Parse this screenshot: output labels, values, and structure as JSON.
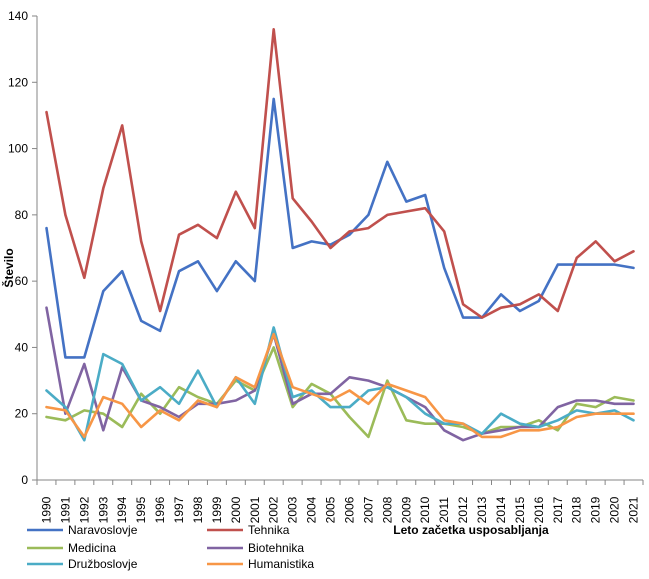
{
  "chart_data": {
    "type": "line",
    "title": "",
    "xlabel": "Leto začetka usposabljanja",
    "ylabel": "Število",
    "ylim": [
      0,
      140
    ],
    "yticks": [
      0,
      20,
      40,
      60,
      80,
      100,
      120,
      140
    ],
    "grid": false,
    "legend_position": "bottom-left",
    "categories": [
      "1990",
      "1991",
      "1992",
      "1993",
      "1994",
      "1995",
      "1996",
      "1997",
      "1998",
      "1999",
      "2000",
      "2001",
      "2002",
      "2003",
      "2004",
      "2005",
      "2006",
      "2007",
      "2008",
      "2009",
      "2010",
      "2011",
      "2012",
      "2013",
      "2014",
      "2015",
      "2016",
      "2017",
      "2018",
      "2019",
      "2020",
      "2021"
    ],
    "series": [
      {
        "name": "Naravoslovje",
        "color": "#4472C4",
        "values": [
          76,
          37,
          37,
          57,
          63,
          48,
          45,
          63,
          66,
          57,
          66,
          60,
          115,
          70,
          72,
          71,
          74,
          80,
          96,
          84,
          86,
          64,
          49,
          49,
          56,
          51,
          54,
          65,
          65,
          65,
          65,
          64
        ]
      },
      {
        "name": "Tehnika",
        "color": "#C0504D",
        "values": [
          111,
          80,
          61,
          88,
          107,
          72,
          51,
          74,
          77,
          73,
          87,
          76,
          136,
          85,
          78,
          70,
          75,
          76,
          80,
          81,
          82,
          75,
          53,
          49,
          52,
          53,
          56,
          51,
          67,
          72,
          66,
          69
        ]
      },
      {
        "name": "Medicina",
        "color": "#9BBB59",
        "values": [
          19,
          18,
          21,
          20,
          16,
          26,
          20,
          28,
          25,
          23,
          30,
          27,
          40,
          22,
          29,
          26,
          19,
          13,
          30,
          18,
          17,
          17,
          16,
          14,
          16,
          16,
          18,
          15,
          23,
          22,
          25,
          24
        ]
      },
      {
        "name": "Biotehnika",
        "color": "#8064A2",
        "values": [
          52,
          20,
          35,
          15,
          34,
          24,
          22,
          19,
          23,
          23,
          24,
          27,
          44,
          23,
          26,
          26,
          31,
          30,
          28,
          25,
          22,
          15,
          12,
          14,
          15,
          16,
          16,
          22,
          24,
          24,
          23,
          23
        ]
      },
      {
        "name": "Družboslovje",
        "color": "#4BACC6",
        "values": [
          27,
          22,
          12,
          38,
          35,
          24,
          28,
          23,
          33,
          22,
          31,
          23,
          46,
          25,
          27,
          22,
          22,
          27,
          28,
          25,
          20,
          17,
          17,
          14,
          20,
          17,
          16,
          18,
          21,
          20,
          21,
          18
        ]
      },
      {
        "name": "Humanistika",
        "color": "#F79646",
        "values": [
          22,
          21,
          13,
          25,
          23,
          16,
          21,
          18,
          24,
          22,
          31,
          28,
          44,
          28,
          26,
          24,
          27,
          23,
          29,
          27,
          25,
          18,
          17,
          13,
          13,
          15,
          15,
          16,
          19,
          20,
          20,
          20
        ]
      }
    ]
  }
}
